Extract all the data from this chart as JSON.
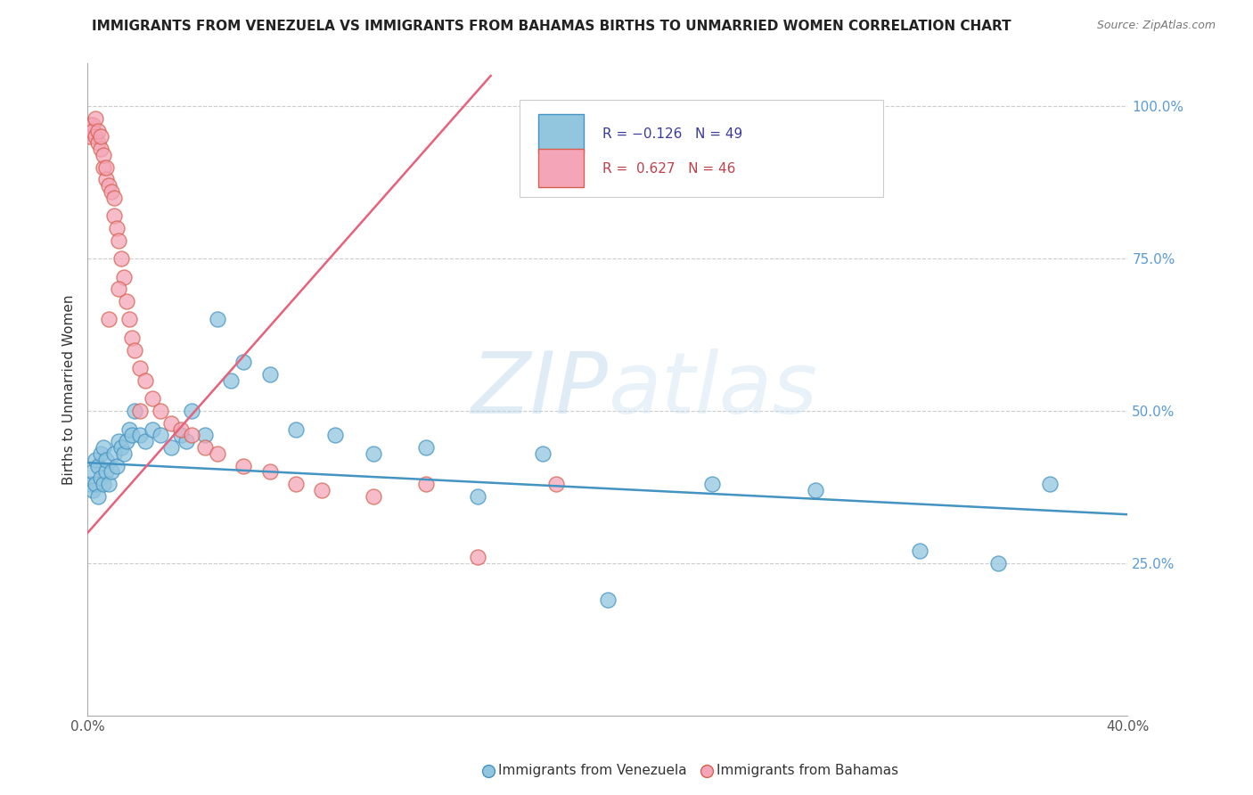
{
  "title": "IMMIGRANTS FROM VENEZUELA VS IMMIGRANTS FROM BAHAMAS BIRTHS TO UNMARRIED WOMEN CORRELATION CHART",
  "source": "Source: ZipAtlas.com",
  "ylabel": "Births to Unmarried Women",
  "legend_text1": "R = -0.126   N = 49",
  "legend_text2": "R =  0.627   N = 46",
  "blue_color": "#92c5de",
  "pink_color": "#f4a6b8",
  "blue_edge_color": "#4393c3",
  "pink_edge_color": "#d6604d",
  "pink_line_color": "#e8607a",
  "blue_line_color": "#4393c3",
  "blue_label": "Immigrants from Venezuela",
  "pink_label": "Immigrants from Bahamas",
  "watermark": "ZIPatlas",
  "xlim": [
    0.0,
    0.4
  ],
  "ylim": [
    0.0,
    1.07
  ],
  "blue_x": [
    0.001,
    0.002,
    0.002,
    0.003,
    0.003,
    0.004,
    0.004,
    0.005,
    0.005,
    0.006,
    0.006,
    0.007,
    0.007,
    0.008,
    0.009,
    0.01,
    0.011,
    0.012,
    0.013,
    0.014,
    0.015,
    0.016,
    0.017,
    0.018,
    0.02,
    0.022,
    0.025,
    0.028,
    0.032,
    0.036,
    0.04,
    0.045,
    0.05,
    0.06,
    0.07,
    0.08,
    0.095,
    0.11,
    0.13,
    0.15,
    0.175,
    0.2,
    0.24,
    0.28,
    0.32,
    0.35,
    0.37,
    0.038,
    0.055
  ],
  "blue_y": [
    0.38,
    0.37,
    0.4,
    0.38,
    0.42,
    0.36,
    0.41,
    0.39,
    0.43,
    0.38,
    0.44,
    0.4,
    0.42,
    0.38,
    0.4,
    0.43,
    0.41,
    0.45,
    0.44,
    0.43,
    0.45,
    0.47,
    0.46,
    0.5,
    0.46,
    0.45,
    0.47,
    0.46,
    0.44,
    0.46,
    0.5,
    0.46,
    0.65,
    0.58,
    0.56,
    0.47,
    0.46,
    0.43,
    0.44,
    0.36,
    0.43,
    0.19,
    0.38,
    0.37,
    0.27,
    0.25,
    0.38,
    0.45,
    0.55
  ],
  "pink_x": [
    0.001,
    0.001,
    0.002,
    0.002,
    0.003,
    0.003,
    0.004,
    0.004,
    0.005,
    0.005,
    0.006,
    0.006,
    0.007,
    0.007,
    0.008,
    0.009,
    0.01,
    0.01,
    0.011,
    0.012,
    0.013,
    0.014,
    0.015,
    0.016,
    0.017,
    0.018,
    0.02,
    0.022,
    0.025,
    0.028,
    0.032,
    0.036,
    0.04,
    0.045,
    0.05,
    0.06,
    0.07,
    0.08,
    0.09,
    0.11,
    0.13,
    0.15,
    0.18,
    0.02,
    0.008,
    0.012
  ],
  "pink_y": [
    0.97,
    0.95,
    0.97,
    0.96,
    0.95,
    0.98,
    0.94,
    0.96,
    0.93,
    0.95,
    0.9,
    0.92,
    0.88,
    0.9,
    0.87,
    0.86,
    0.85,
    0.82,
    0.8,
    0.78,
    0.75,
    0.72,
    0.68,
    0.65,
    0.62,
    0.6,
    0.57,
    0.55,
    0.52,
    0.5,
    0.48,
    0.47,
    0.46,
    0.44,
    0.43,
    0.41,
    0.4,
    0.38,
    0.37,
    0.36,
    0.38,
    0.26,
    0.38,
    0.5,
    0.65,
    0.7
  ],
  "blue_line_x": [
    0.0,
    0.4
  ],
  "blue_line_y": [
    0.415,
    0.33
  ],
  "pink_line_x": [
    0.0,
    0.155
  ],
  "pink_line_y": [
    0.3,
    1.05
  ]
}
